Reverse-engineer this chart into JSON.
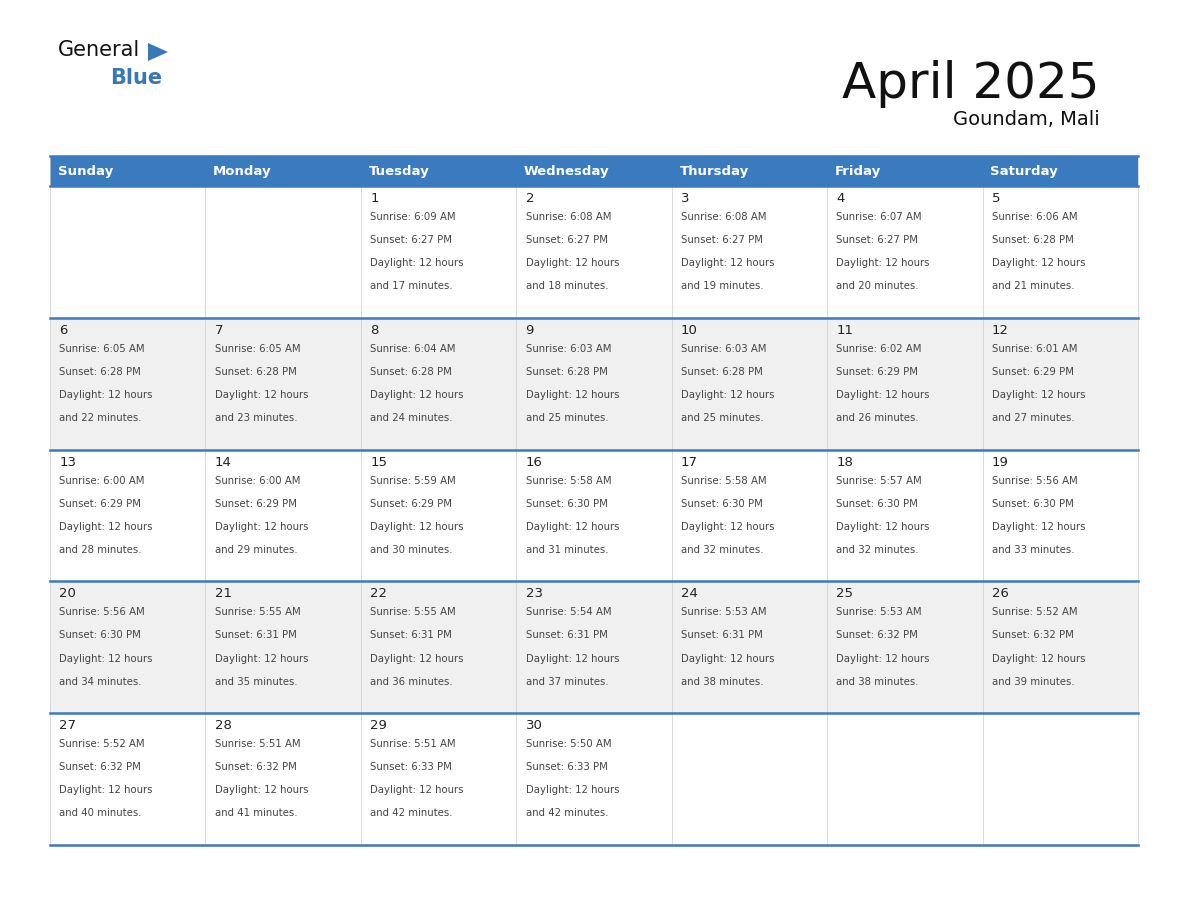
{
  "title": "April 2025",
  "subtitle": "Goundam, Mali",
  "header_bg_color": "#3a7bbf",
  "header_text_color": "#ffffff",
  "border_color": "#3a7bbf",
  "text_color": "#222222",
  "day_names": [
    "Sunday",
    "Monday",
    "Tuesday",
    "Wednesday",
    "Thursday",
    "Friday",
    "Saturday"
  ],
  "logo_general_color": "#111111",
  "logo_blue_color": "#3878b8",
  "logo_triangle_color": "#3878b8",
  "days": [
    {
      "day": 1,
      "col": 2,
      "row": 0,
      "sunrise": "6:09 AM",
      "sunset": "6:27 PM",
      "daylight_hours": 12,
      "daylight_minutes": 17
    },
    {
      "day": 2,
      "col": 3,
      "row": 0,
      "sunrise": "6:08 AM",
      "sunset": "6:27 PM",
      "daylight_hours": 12,
      "daylight_minutes": 18
    },
    {
      "day": 3,
      "col": 4,
      "row": 0,
      "sunrise": "6:08 AM",
      "sunset": "6:27 PM",
      "daylight_hours": 12,
      "daylight_minutes": 19
    },
    {
      "day": 4,
      "col": 5,
      "row": 0,
      "sunrise": "6:07 AM",
      "sunset": "6:27 PM",
      "daylight_hours": 12,
      "daylight_minutes": 20
    },
    {
      "day": 5,
      "col": 6,
      "row": 0,
      "sunrise": "6:06 AM",
      "sunset": "6:28 PM",
      "daylight_hours": 12,
      "daylight_minutes": 21
    },
    {
      "day": 6,
      "col": 0,
      "row": 1,
      "sunrise": "6:05 AM",
      "sunset": "6:28 PM",
      "daylight_hours": 12,
      "daylight_minutes": 22
    },
    {
      "day": 7,
      "col": 1,
      "row": 1,
      "sunrise": "6:05 AM",
      "sunset": "6:28 PM",
      "daylight_hours": 12,
      "daylight_minutes": 23
    },
    {
      "day": 8,
      "col": 2,
      "row": 1,
      "sunrise": "6:04 AM",
      "sunset": "6:28 PM",
      "daylight_hours": 12,
      "daylight_minutes": 24
    },
    {
      "day": 9,
      "col": 3,
      "row": 1,
      "sunrise": "6:03 AM",
      "sunset": "6:28 PM",
      "daylight_hours": 12,
      "daylight_minutes": 25
    },
    {
      "day": 10,
      "col": 4,
      "row": 1,
      "sunrise": "6:03 AM",
      "sunset": "6:28 PM",
      "daylight_hours": 12,
      "daylight_minutes": 25
    },
    {
      "day": 11,
      "col": 5,
      "row": 1,
      "sunrise": "6:02 AM",
      "sunset": "6:29 PM",
      "daylight_hours": 12,
      "daylight_minutes": 26
    },
    {
      "day": 12,
      "col": 6,
      "row": 1,
      "sunrise": "6:01 AM",
      "sunset": "6:29 PM",
      "daylight_hours": 12,
      "daylight_minutes": 27
    },
    {
      "day": 13,
      "col": 0,
      "row": 2,
      "sunrise": "6:00 AM",
      "sunset": "6:29 PM",
      "daylight_hours": 12,
      "daylight_minutes": 28
    },
    {
      "day": 14,
      "col": 1,
      "row": 2,
      "sunrise": "6:00 AM",
      "sunset": "6:29 PM",
      "daylight_hours": 12,
      "daylight_minutes": 29
    },
    {
      "day": 15,
      "col": 2,
      "row": 2,
      "sunrise": "5:59 AM",
      "sunset": "6:29 PM",
      "daylight_hours": 12,
      "daylight_minutes": 30
    },
    {
      "day": 16,
      "col": 3,
      "row": 2,
      "sunrise": "5:58 AM",
      "sunset": "6:30 PM",
      "daylight_hours": 12,
      "daylight_minutes": 31
    },
    {
      "day": 17,
      "col": 4,
      "row": 2,
      "sunrise": "5:58 AM",
      "sunset": "6:30 PM",
      "daylight_hours": 12,
      "daylight_minutes": 32
    },
    {
      "day": 18,
      "col": 5,
      "row": 2,
      "sunrise": "5:57 AM",
      "sunset": "6:30 PM",
      "daylight_hours": 12,
      "daylight_minutes": 32
    },
    {
      "day": 19,
      "col": 6,
      "row": 2,
      "sunrise": "5:56 AM",
      "sunset": "6:30 PM",
      "daylight_hours": 12,
      "daylight_minutes": 33
    },
    {
      "day": 20,
      "col": 0,
      "row": 3,
      "sunrise": "5:56 AM",
      "sunset": "6:30 PM",
      "daylight_hours": 12,
      "daylight_minutes": 34
    },
    {
      "day": 21,
      "col": 1,
      "row": 3,
      "sunrise": "5:55 AM",
      "sunset": "6:31 PM",
      "daylight_hours": 12,
      "daylight_minutes": 35
    },
    {
      "day": 22,
      "col": 2,
      "row": 3,
      "sunrise": "5:55 AM",
      "sunset": "6:31 PM",
      "daylight_hours": 12,
      "daylight_minutes": 36
    },
    {
      "day": 23,
      "col": 3,
      "row": 3,
      "sunrise": "5:54 AM",
      "sunset": "6:31 PM",
      "daylight_hours": 12,
      "daylight_minutes": 37
    },
    {
      "day": 24,
      "col": 4,
      "row": 3,
      "sunrise": "5:53 AM",
      "sunset": "6:31 PM",
      "daylight_hours": 12,
      "daylight_minutes": 38
    },
    {
      "day": 25,
      "col": 5,
      "row": 3,
      "sunrise": "5:53 AM",
      "sunset": "6:32 PM",
      "daylight_hours": 12,
      "daylight_minutes": 38
    },
    {
      "day": 26,
      "col": 6,
      "row": 3,
      "sunrise": "5:52 AM",
      "sunset": "6:32 PM",
      "daylight_hours": 12,
      "daylight_minutes": 39
    },
    {
      "day": 27,
      "col": 0,
      "row": 4,
      "sunrise": "5:52 AM",
      "sunset": "6:32 PM",
      "daylight_hours": 12,
      "daylight_minutes": 40
    },
    {
      "day": 28,
      "col": 1,
      "row": 4,
      "sunrise": "5:51 AM",
      "sunset": "6:32 PM",
      "daylight_hours": 12,
      "daylight_minutes": 41
    },
    {
      "day": 29,
      "col": 2,
      "row": 4,
      "sunrise": "5:51 AM",
      "sunset": "6:33 PM",
      "daylight_hours": 12,
      "daylight_minutes": 42
    },
    {
      "day": 30,
      "col": 3,
      "row": 4,
      "sunrise": "5:50 AM",
      "sunset": "6:33 PM",
      "daylight_hours": 12,
      "daylight_minutes": 42
    }
  ]
}
